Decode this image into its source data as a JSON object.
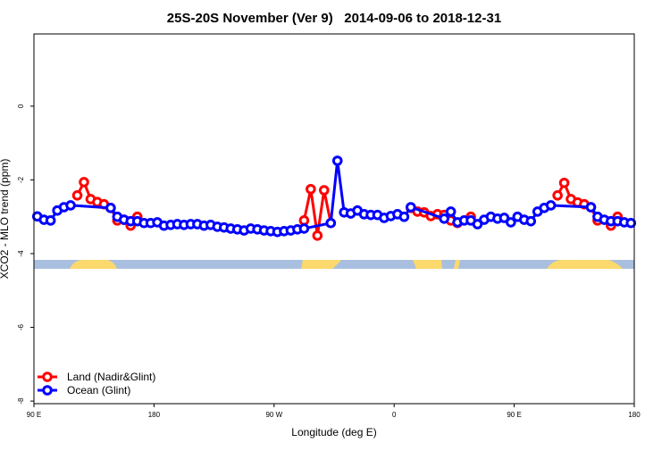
{
  "chart_data": {
    "type": "line",
    "title": "25S-20S November (Ver 9)   2014-09-06 to 2018-12-31",
    "x_label": "Longitude (deg E)",
    "y_label": "XCO2 - MLO trend (ppm)",
    "xlim": [
      90,
      540
    ],
    "xticks": [
      {
        "value": 90,
        "label": "90 E"
      },
      {
        "value": 180,
        "label": "180"
      },
      {
        "value": 270,
        "label": "90 W"
      },
      {
        "value": 360,
        "label": "0"
      },
      {
        "value": 450,
        "label": "90 E"
      },
      {
        "value": 540,
        "label": "180"
      }
    ],
    "ylim": [
      -8.07,
      1.96
    ],
    "yticks": [
      0,
      -2,
      -4,
      -6,
      -8
    ],
    "legend": "bottom-left",
    "series": [
      {
        "name": "Land (Nadir&Glint)",
        "color": "#ff0000",
        "x": [
          122.5,
          127.5,
          132.5,
          137.5,
          142.5,
          147.5,
          152.5,
          157.5,
          162.5,
          167.5,
          null,
          292.5,
          297.5,
          302.5,
          307.5,
          312.5,
          null,
          372.5,
          377.5,
          382.5,
          387.5,
          392.5,
          397.5,
          402.5,
          407.5,
          null,
          417.5,
          null,
          482.5,
          487.5,
          492.5,
          497.5,
          502.5,
          507.5,
          512.5,
          null,
          522.5,
          527.5
        ],
        "values": [
          -2.42,
          -2.06,
          -2.52,
          -2.6,
          -2.66,
          -2.76,
          -3.1,
          -3.08,
          -3.24,
          -3.0,
          null,
          -3.1,
          -2.25,
          -3.51,
          -2.28,
          -3.17,
          null,
          -2.76,
          -2.86,
          -2.88,
          -2.98,
          -2.93,
          -2.95,
          -3.1,
          -3.17,
          null,
          -3.0,
          null,
          -2.42,
          -2.08,
          -2.52,
          -2.61,
          -2.66,
          -2.74,
          -3.1,
          null,
          -3.24,
          -3.0
        ]
      },
      {
        "name": "Ocean (Glint)",
        "color": "#0000ff",
        "x": [
          92.5,
          97.5,
          102.5,
          107.5,
          112.5,
          117.5,
          147.5,
          152.5,
          157.5,
          162.5,
          167.5,
          172.5,
          177.5,
          182.5,
          187.5,
          192.5,
          197.5,
          202.5,
          207.5,
          212.5,
          217.5,
          222.5,
          227.5,
          232.5,
          237.5,
          242.5,
          247.5,
          252.5,
          257.5,
          262.5,
          267.5,
          272.5,
          277.5,
          282.5,
          287.5,
          292.5,
          312.5,
          317.5,
          322.5,
          327.5,
          332.5,
          337.5,
          342.5,
          347.5,
          352.5,
          357.5,
          362.5,
          367.5,
          372.5,
          397.5,
          402.5,
          407.5,
          412.5,
          417.5,
          422.5,
          427.5,
          432.5,
          437.5,
          442.5,
          447.5,
          452.5,
          457.5,
          462.5,
          467.5,
          472.5,
          477.5,
          507.5,
          512.5,
          517.5,
          522.5,
          527.5,
          532.5,
          537.5
        ],
        "values": [
          -2.99,
          -3.08,
          -3.1,
          -2.83,
          -2.74,
          -2.69,
          -2.76,
          -3.0,
          -3.08,
          -3.12,
          -3.12,
          -3.17,
          -3.17,
          -3.15,
          -3.24,
          -3.22,
          -3.2,
          -3.22,
          -3.2,
          -3.2,
          -3.24,
          -3.22,
          -3.27,
          -3.29,
          -3.32,
          -3.34,
          -3.37,
          -3.32,
          -3.34,
          -3.37,
          -3.39,
          -3.41,
          -3.39,
          -3.37,
          -3.34,
          -3.32,
          -3.17,
          -1.48,
          -2.88,
          -2.91,
          -2.83,
          -2.93,
          -2.95,
          -2.95,
          -3.03,
          -2.98,
          -2.93,
          -3.0,
          -2.74,
          -3.05,
          -2.86,
          -3.15,
          -3.1,
          -3.1,
          -3.2,
          -3.08,
          -3.0,
          -3.05,
          -3.03,
          -3.15,
          -3.0,
          -3.08,
          -3.12,
          -2.86,
          -2.76,
          -2.69,
          -2.74,
          -3.0,
          -3.08,
          -3.12,
          -3.12,
          -3.15,
          -3.17
        ]
      }
    ]
  }
}
